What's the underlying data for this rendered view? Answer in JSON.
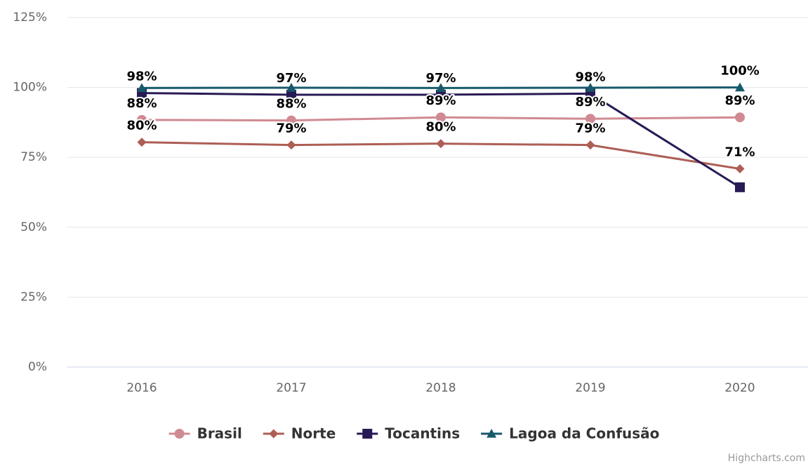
{
  "chart_data": {
    "type": "line",
    "categories": [
      "2016",
      "2017",
      "2018",
      "2019",
      "2020"
    ],
    "ylim": [
      0,
      125
    ],
    "yticks": [
      {
        "value": 0,
        "label": "0%"
      },
      {
        "value": 25,
        "label": "25%"
      },
      {
        "value": 50,
        "label": "50%"
      },
      {
        "value": 75,
        "label": "75%"
      },
      {
        "value": 100,
        "label": "100%"
      },
      {
        "value": 125,
        "label": "125%"
      }
    ],
    "grid": true,
    "legend": "bottom",
    "credits": "Highcharts.com",
    "series": [
      {
        "name": "Brasil",
        "color": "#d08a92",
        "marker": "circle",
        "values": [
          88.4,
          88.2,
          89.3,
          88.8,
          89.3
        ],
        "value_labels": [
          "88%",
          "88%",
          "89%",
          "89%",
          "89%"
        ]
      },
      {
        "name": "Norte",
        "color": "#ad5e55",
        "marker": "diamond",
        "values": [
          80.4,
          79.4,
          79.9,
          79.4,
          70.9
        ],
        "value_labels": [
          "80%",
          "79%",
          "80%",
          "79%",
          "71%"
        ]
      },
      {
        "name": "Tocantins",
        "color": "#281a55",
        "marker": "square",
        "values": [
          98.0,
          97.4,
          97.4,
          97.8,
          64.3
        ],
        "value_labels": [
          "98%",
          "97%",
          "97%",
          "98%",
          null
        ]
      },
      {
        "name": "Lagoa da Confusão",
        "color": "#175a6b",
        "marker": "triangle",
        "values": [
          99.8,
          99.9,
          99.8,
          99.9,
          100
        ],
        "value_labels": [
          null,
          null,
          null,
          null,
          "100%"
        ]
      }
    ]
  }
}
